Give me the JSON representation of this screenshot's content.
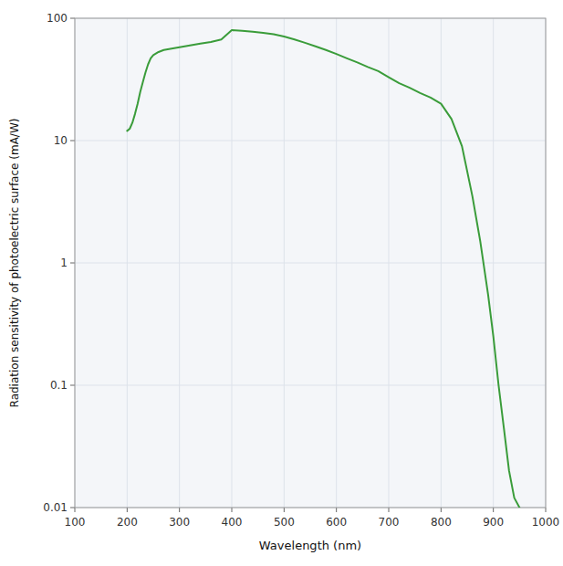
{
  "chart_data": {
    "type": "line",
    "xlabel": "Wavelength (nm)",
    "ylabel": "Radiation sensitivity of photoelectric surface (mA/W)",
    "x": [
      200,
      205,
      210,
      215,
      220,
      225,
      230,
      235,
      240,
      245,
      250,
      260,
      270,
      280,
      290,
      300,
      320,
      340,
      360,
      380,
      400,
      420,
      440,
      460,
      480,
      500,
      520,
      540,
      560,
      580,
      600,
      620,
      640,
      660,
      680,
      700,
      720,
      740,
      760,
      780,
      800,
      820,
      840,
      860,
      875,
      890,
      900,
      910,
      920,
      930,
      940,
      950
    ],
    "values": [
      12.0,
      12.5,
      14.0,
      16.5,
      20.0,
      25.0,
      30.0,
      36.0,
      42.0,
      47.0,
      50.0,
      53.0,
      55.0,
      56.0,
      57.0,
      58.0,
      60.0,
      62.0,
      64.0,
      67.0,
      80.0,
      79.0,
      77.5,
      76.0,
      74.0,
      71.0,
      67.0,
      63.0,
      59.0,
      55.0,
      51.0,
      47.0,
      43.5,
      40.0,
      37.0,
      33.0,
      29.5,
      27.0,
      24.5,
      22.5,
      20.0,
      15.0,
      9.0,
      3.5,
      1.5,
      0.55,
      0.25,
      0.1,
      0.045,
      0.02,
      0.012,
      0.01
    ],
    "color": "#3a9c3a",
    "xlim": [
      100,
      1000
    ],
    "ylim": [
      0.01,
      100
    ],
    "xticks": [
      100,
      200,
      300,
      400,
      500,
      600,
      700,
      800,
      900,
      1000
    ],
    "yticks": [
      0.01,
      0.1,
      1,
      10,
      100
    ],
    "log": "y",
    "grid": true
  }
}
